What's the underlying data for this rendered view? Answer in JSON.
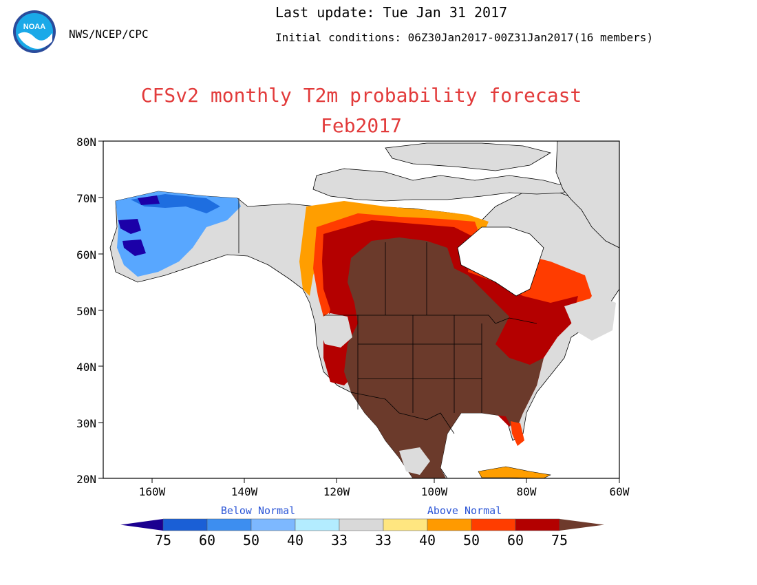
{
  "header": {
    "agency": "NWS/NCEP/CPC",
    "last_update": "Last update: Tue Jan 31 2017",
    "initial_conditions": "Initial conditions: 06Z30Jan2017-00Z31Jan2017(16 members)",
    "logo_text": "NOAA"
  },
  "title": "CFSv2 monthly T2m probability forecast",
  "subtitle": "Feb2017",
  "map": {
    "lat_ticks": [
      "80N",
      "70N",
      "60N",
      "50N",
      "40N",
      "30N",
      "20N"
    ],
    "lon_ticks": [
      "160W",
      "140W",
      "120W",
      "100W",
      "80W",
      "60W"
    ],
    "categories": {
      "ocean": "#ffffff",
      "land_normal": "#dcdcdc",
      "above_40": "#fde47a",
      "above_50": "#ff9e00",
      "above_60": "#ff3c00",
      "above_75": "#b40000",
      "above_max": "#6b3a2b",
      "below_50": "#58a7ff",
      "below_60": "#1e6ee0",
      "below_75": "#1b00a8",
      "border": "#000000"
    }
  },
  "legend": {
    "below_label": "Below Normal",
    "above_label": "Above Normal",
    "values": [
      "75",
      "60",
      "50",
      "40",
      "33",
      "33",
      "40",
      "50",
      "60",
      "75"
    ],
    "colors": [
      "#1b0090",
      "#1a5fd6",
      "#3d8ef0",
      "#7db8ff",
      "#b3ecff",
      "#d9d9d9",
      "#ffe680",
      "#ff9a00",
      "#ff3d00",
      "#b30000",
      "#6e3a2c"
    ]
  }
}
